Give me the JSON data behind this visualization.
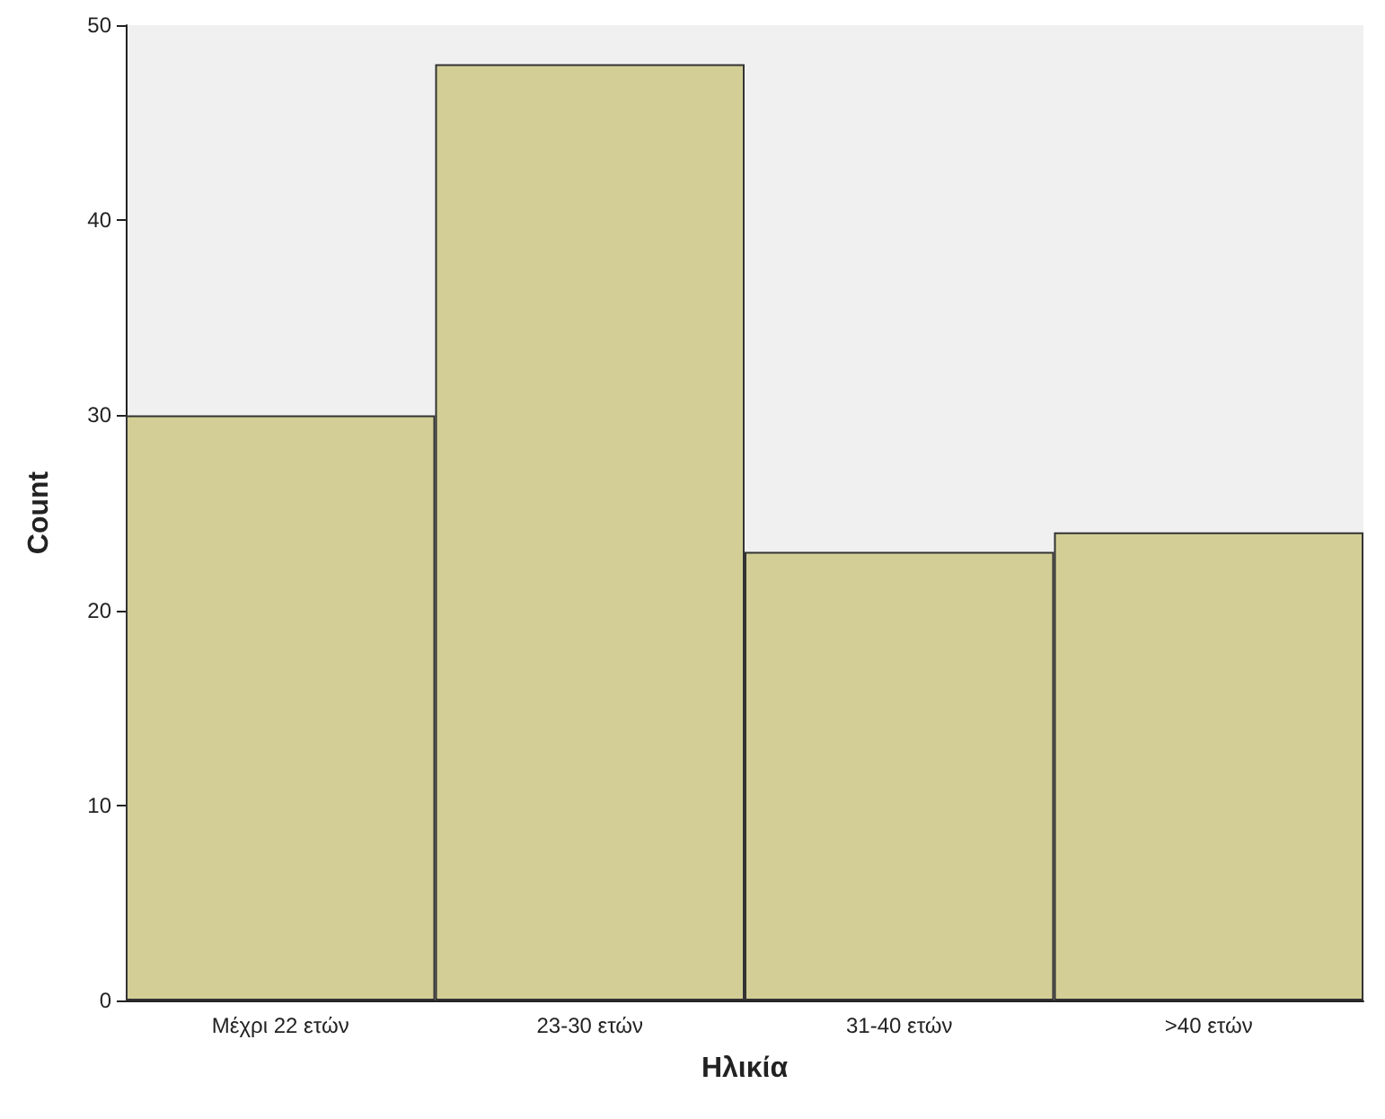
{
  "chart_data": {
    "type": "bar",
    "xlabel": "Ηλικία",
    "ylabel": "Count",
    "categories": [
      "Μέχρι 22 ετών",
      "23-30 ετών",
      "31-40 ετών",
      ">40 ετών"
    ],
    "values": [
      30,
      48,
      23,
      24
    ],
    "color": "#d3ce96",
    "ylim": [
      0,
      50
    ],
    "yticks": [
      0,
      10,
      20,
      30,
      40,
      50
    ],
    "grid": false
  }
}
